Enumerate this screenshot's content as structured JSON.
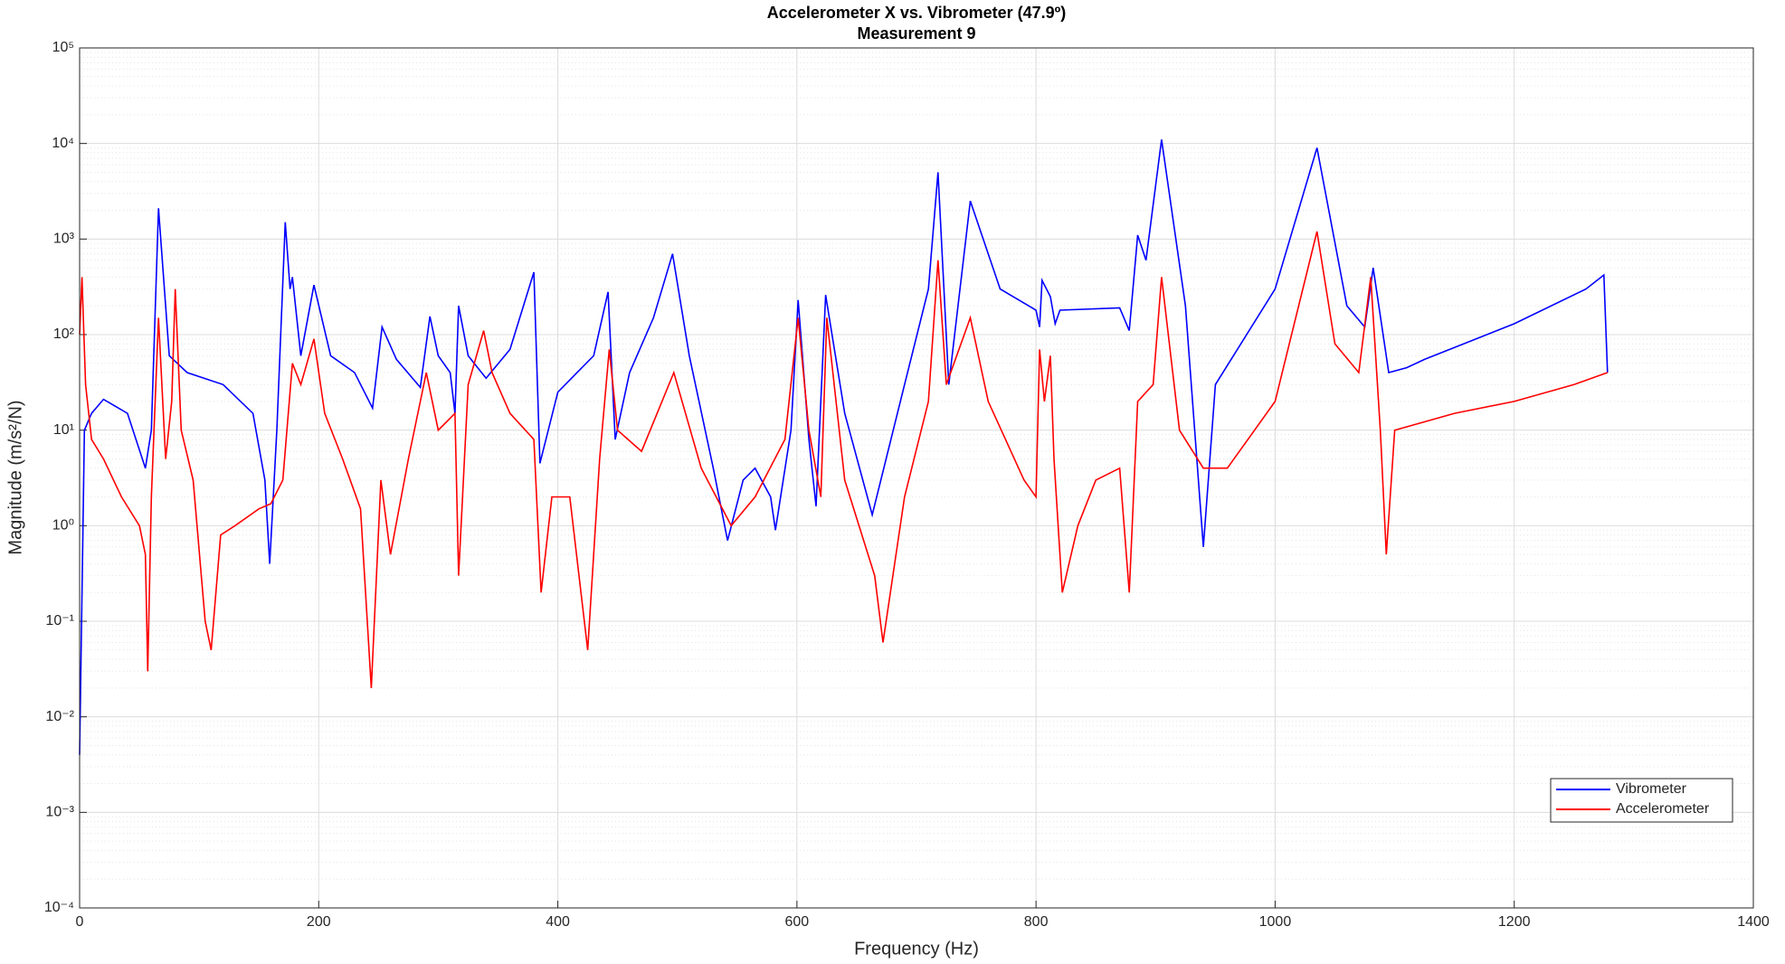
{
  "chart_data": {
    "type": "line",
    "title": "Accelerometer X vs. Vibrometer (47.9º)",
    "subtitle": "Measurement 9",
    "x_label": "Frequency (Hz)",
    "y_label": "Magnitude  (m/s²/N)",
    "xlim": [
      0,
      1400
    ],
    "xticks": [
      0,
      200,
      400,
      600,
      800,
      1000,
      1200,
      1400
    ],
    "ylim": [
      0.0001,
      100000
    ],
    "log_y": true,
    "grid": true,
    "legend": "lower right",
    "yticks": [
      {
        "value": 0.0001,
        "label": "10⁻⁴"
      },
      {
        "value": 0.001,
        "label": "10⁻³"
      },
      {
        "value": 0.01,
        "label": "10⁻²"
      },
      {
        "value": 0.1,
        "label": "10⁻¹"
      },
      {
        "value": 1,
        "label": "10⁰"
      },
      {
        "value": 10,
        "label": "10¹"
      },
      {
        "value": 100,
        "label": "10²"
      },
      {
        "value": 1000,
        "label": "10³"
      },
      {
        "value": 10000,
        "label": "10⁴"
      },
      {
        "value": 100000,
        "label": "10⁵"
      }
    ],
    "series": [
      {
        "name": "Vibrometer",
        "color": "#0000ff",
        "x": [
          0,
          4,
          10,
          20,
          40,
          55,
          60,
          66,
          75,
          90,
          120,
          145,
          155,
          159,
          165,
          172,
          176,
          178,
          185,
          196,
          210,
          230,
          245,
          253,
          265,
          285,
          293,
          300,
          310,
          314,
          317,
          325,
          333,
          340,
          360,
          380,
          385,
          400,
          430,
          442,
          448,
          460,
          480,
          496,
          510,
          530,
          542,
          555,
          565,
          578,
          582,
          595,
          601,
          610,
          616,
          624,
          640,
          663,
          690,
          710,
          718,
          727,
          745,
          770,
          800,
          803,
          805,
          812,
          816,
          820,
          870,
          878,
          885,
          892,
          905,
          925,
          940,
          950,
          1000,
          1035,
          1060,
          1075,
          1082,
          1095,
          1110,
          1125,
          1200,
          1260,
          1275,
          1278
        ],
        "values": [
          0.004,
          10,
          15,
          21,
          15,
          4,
          10,
          2100,
          60,
          40,
          30,
          15,
          3,
          0.4,
          10,
          1500,
          300,
          400,
          60,
          330,
          60,
          40,
          17,
          120,
          55,
          28,
          155,
          60,
          40,
          15,
          200,
          60,
          45,
          35,
          70,
          450,
          4.5,
          25,
          60,
          280,
          8,
          40,
          150,
          700,
          60,
          4,
          0.7,
          3,
          4,
          2,
          0.9,
          10,
          230,
          8,
          1.6,
          260,
          15,
          1.3,
          30,
          300,
          5000,
          30,
          2500,
          300,
          180,
          120,
          370,
          250,
          130,
          180,
          190,
          110,
          1100,
          600,
          11000,
          200,
          0.6,
          30,
          300,
          9000,
          200,
          120,
          500,
          40,
          45,
          55,
          130,
          300,
          420,
          40
        ]
      },
      {
        "name": "Accelerometer",
        "color": "#ff0000",
        "x": [
          0,
          2,
          5,
          10,
          20,
          35,
          50,
          55,
          57,
          60,
          66,
          72,
          77,
          80,
          85,
          95,
          105,
          110,
          118,
          130,
          150,
          160,
          170,
          178,
          185,
          196,
          205,
          220,
          235,
          244,
          252,
          260,
          275,
          290,
          300,
          314,
          317,
          325,
          338,
          345,
          360,
          380,
          386,
          395,
          410,
          425,
          435,
          443,
          450,
          470,
          497,
          520,
          545,
          565,
          590,
          601,
          610,
          620,
          625,
          640,
          665,
          672,
          690,
          710,
          718,
          725,
          745,
          760,
          790,
          800,
          803,
          807,
          812,
          815,
          822,
          835,
          850,
          870,
          878,
          885,
          898,
          905,
          920,
          940,
          960,
          1000,
          1035,
          1050,
          1070,
          1080,
          1088,
          1093,
          1100,
          1150,
          1200,
          1250,
          1278
        ],
        "values": [
          100,
          400,
          30,
          8,
          5,
          2,
          1,
          0.5,
          0.03,
          2,
          150,
          5,
          20,
          300,
          10,
          3,
          0.1,
          0.05,
          0.8,
          1,
          1.5,
          1.7,
          3,
          50,
          30,
          90,
          15,
          5,
          1.5,
          0.02,
          3,
          0.5,
          5,
          40,
          10,
          15,
          0.3,
          30,
          110,
          40,
          15,
          8,
          0.2,
          2,
          2,
          0.05,
          5,
          70,
          10,
          6,
          40,
          4,
          1,
          2,
          8,
          150,
          10,
          2,
          150,
          3,
          0.3,
          0.06,
          2,
          20,
          600,
          30,
          150,
          20,
          3,
          2,
          70,
          20,
          60,
          5,
          0.2,
          1,
          3,
          4,
          0.2,
          20,
          30,
          400,
          10,
          4,
          4,
          20,
          1200,
          80,
          40,
          400,
          10,
          0.5,
          10,
          15,
          20,
          30,
          40
        ]
      }
    ]
  }
}
